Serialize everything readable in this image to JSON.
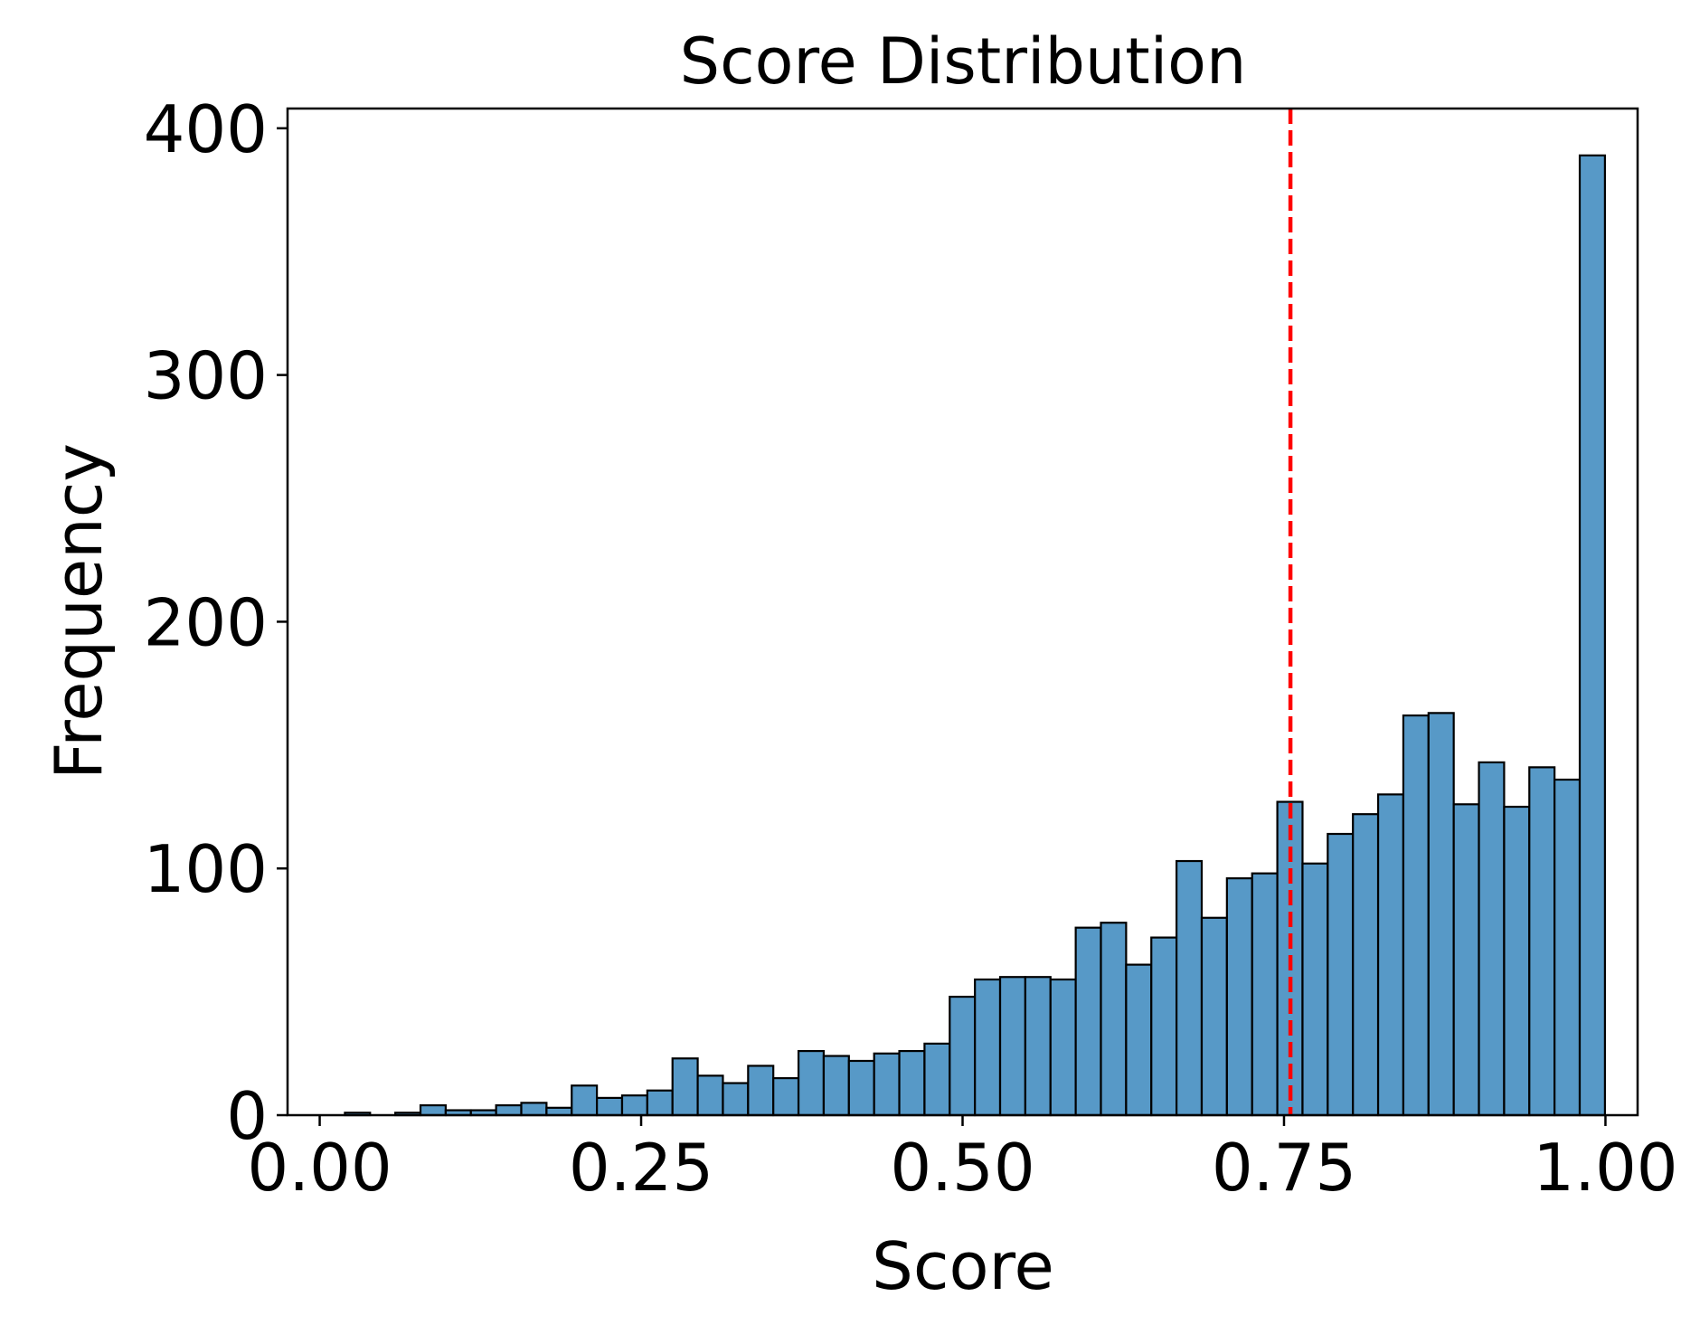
{
  "chart_data": {
    "type": "bar",
    "title": "Score Distribution",
    "xlabel": "Score",
    "ylabel": "Frequency",
    "xlim": [
      -0.025,
      1.025
    ],
    "ylim": [
      0,
      408
    ],
    "xticks": [
      0.0,
      0.25,
      0.5,
      0.75,
      1.0
    ],
    "xtick_labels": [
      "0.00",
      "0.25",
      "0.50",
      "0.75",
      "1.00"
    ],
    "yticks": [
      0,
      100,
      200,
      300,
      400
    ],
    "ytick_labels": [
      "0",
      "100",
      "200",
      "300",
      "400"
    ],
    "grid": false,
    "bar_color": "#5799c7",
    "bar_edge_color": "#000000",
    "bins": {
      "start": 0.0,
      "width": 0.0196,
      "counts": [
        0,
        1,
        0,
        1,
        4,
        2,
        2,
        4,
        5,
        3,
        12,
        7,
        8,
        10,
        23,
        16,
        13,
        20,
        15,
        26,
        24,
        22,
        25,
        26,
        29,
        48,
        55,
        56,
        56,
        55,
        76,
        78,
        61,
        72,
        103,
        80,
        96,
        98,
        127,
        102,
        114,
        122,
        130,
        162,
        163,
        126,
        143,
        125,
        141,
        136,
        389
      ]
    },
    "reference_line": {
      "x": 0.755,
      "color": "#ff0000",
      "style": "dashed"
    }
  }
}
